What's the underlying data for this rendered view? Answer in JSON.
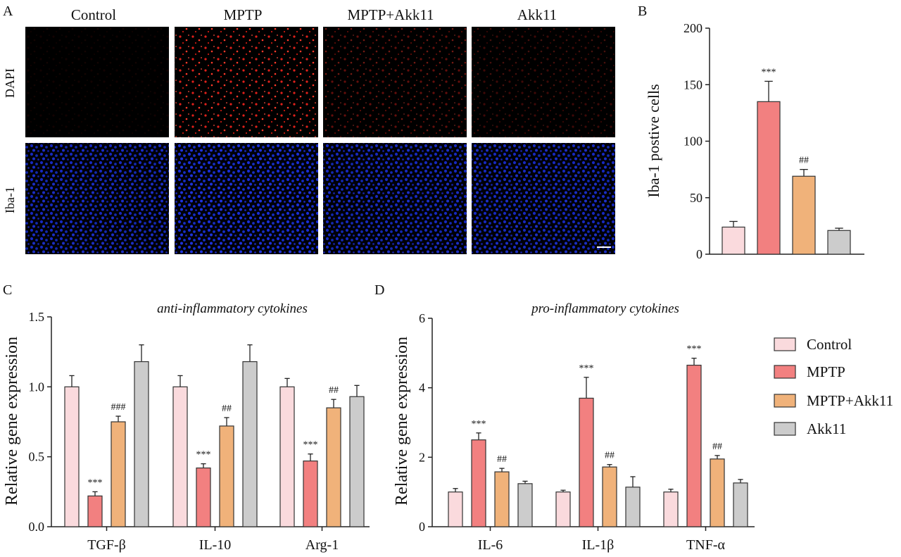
{
  "panels": {
    "a_letter": "A",
    "b_letter": "B",
    "c_letter": "C",
    "d_letter": "D"
  },
  "micrographs": {
    "columns": [
      "Control",
      "MPTP",
      "MPTP+Akk11",
      "Akk11"
    ],
    "rows": [
      "DAPI",
      "Iba-1"
    ],
    "red_intensity": [
      0.08,
      1.0,
      0.45,
      0.28
    ],
    "blue_intensity": [
      0.85,
      0.95,
      0.85,
      0.85
    ]
  },
  "legend": {
    "items": [
      {
        "label": "Control",
        "color": "#fadadd"
      },
      {
        "label": "MPTP",
        "color": "#f28080"
      },
      {
        "label": "MPTP+Akk11",
        "color": "#f0b27a"
      },
      {
        "label": "Akk11",
        "color": "#cccccc"
      }
    ]
  },
  "chart_data": [
    {
      "panel": "B",
      "type": "bar",
      "ylabel": "Iba-1 postive cells",
      "ylim": [
        0,
        200
      ],
      "yticks": [
        0,
        50,
        100,
        150,
        200
      ],
      "categories": [
        "Control",
        "MPTP",
        "MPTP+Akk11",
        "Akk11"
      ],
      "values": [
        24,
        135,
        69,
        21
      ],
      "errors": [
        5,
        18,
        6,
        2
      ],
      "annotations": [
        "",
        "***",
        "##",
        ""
      ],
      "colors": [
        "#fadadd",
        "#f28080",
        "#f0b27a",
        "#cccccc"
      ]
    },
    {
      "panel": "C",
      "type": "bar",
      "title": "anti-inflammatory cytokines",
      "ylabel": "Relative gene expression",
      "ylim": [
        0,
        1.5
      ],
      "yticks": [
        "0.0",
        "0.5",
        "1.0",
        "1.5"
      ],
      "categories": [
        "TGF-β",
        "IL-10",
        "Arg-1"
      ],
      "series": [
        {
          "name": "Control",
          "values": [
            1.0,
            1.0,
            1.0
          ],
          "errors": [
            0.08,
            0.08,
            0.06
          ],
          "annotations": [
            "",
            "",
            ""
          ]
        },
        {
          "name": "MPTP",
          "values": [
            0.22,
            0.42,
            0.47
          ],
          "errors": [
            0.03,
            0.03,
            0.05
          ],
          "annotations": [
            "***",
            "***",
            "***"
          ]
        },
        {
          "name": "MPTP+Akk11",
          "values": [
            0.75,
            0.72,
            0.85
          ],
          "errors": [
            0.04,
            0.06,
            0.06
          ],
          "annotations": [
            "###",
            "##",
            "##"
          ]
        },
        {
          "name": "Akk11",
          "values": [
            1.18,
            1.18,
            0.93
          ],
          "errors": [
            0.12,
            0.12,
            0.08
          ],
          "annotations": [
            "",
            "",
            ""
          ]
        }
      ]
    },
    {
      "panel": "D",
      "type": "bar",
      "title": "pro-inflammatory cytokines",
      "ylabel": "Relative gene expression",
      "ylim": [
        0,
        6
      ],
      "yticks": [
        0,
        2,
        4,
        6
      ],
      "categories": [
        "IL-6",
        "IL-1β",
        "TNF-α"
      ],
      "series": [
        {
          "name": "Control",
          "values": [
            1.0,
            1.0,
            1.0
          ],
          "errors": [
            0.1,
            0.05,
            0.08
          ],
          "annotations": [
            "",
            "",
            ""
          ]
        },
        {
          "name": "MPTP",
          "values": [
            2.5,
            3.7,
            4.65
          ],
          "errors": [
            0.2,
            0.6,
            0.2
          ],
          "annotations": [
            "***",
            "***",
            "***"
          ]
        },
        {
          "name": "MPTP+Akk11",
          "values": [
            1.58,
            1.72,
            1.95
          ],
          "errors": [
            0.1,
            0.07,
            0.1
          ],
          "annotations": [
            "##",
            "##",
            "##"
          ]
        },
        {
          "name": "Akk11",
          "values": [
            1.24,
            1.14,
            1.26
          ],
          "errors": [
            0.07,
            0.3,
            0.1
          ],
          "annotations": [
            "",
            "",
            ""
          ]
        }
      ]
    }
  ]
}
